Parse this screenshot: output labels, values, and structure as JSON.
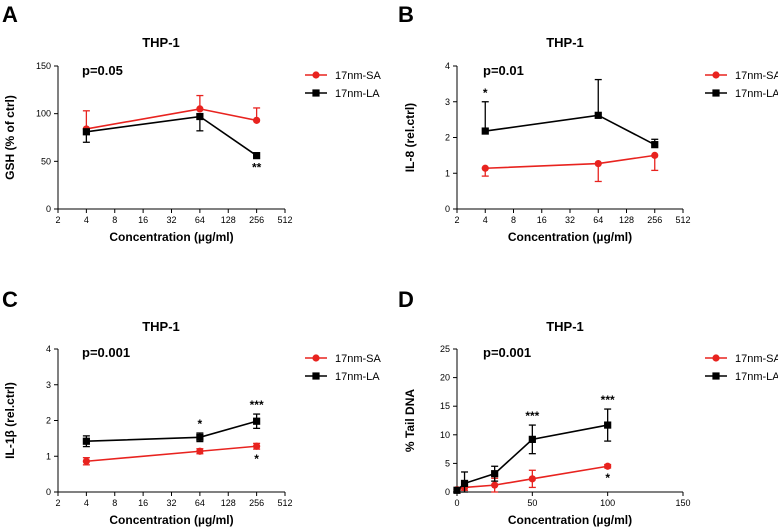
{
  "colors": {
    "sa": "#e8231f",
    "la": "#000000"
  },
  "chart_data": [
    {
      "type": "line",
      "panel": "A",
      "title": "THP-1",
      "annotation": "p=0.05",
      "xlabel": "Concentration (µg/ml)",
      "ylabel": "GSH (% of ctrl)",
      "xscale": "log2",
      "xlim": [
        2,
        512
      ],
      "xticks": [
        2,
        4,
        8,
        16,
        32,
        64,
        128,
        256,
        512
      ],
      "xtick_labels": [
        "2",
        "4",
        "8",
        "16",
        "32",
        "64",
        "128",
        "256",
        "512"
      ],
      "ylim": [
        0,
        150
      ],
      "yticks": [
        0,
        50,
        100,
        150
      ],
      "ytick_labels": [
        "0",
        "50",
        "100",
        "150"
      ],
      "legend_position": "right",
      "series": [
        {
          "name": "17nm-SA",
          "marker": "circle",
          "color": "#e8231f",
          "x": [
            4,
            64,
            256
          ],
          "y": [
            84,
            105,
            93
          ],
          "err": [
            19,
            14,
            13
          ],
          "err_dir": "up",
          "stars": [
            "",
            "",
            ""
          ]
        },
        {
          "name": "17nm-LA",
          "marker": "square",
          "color": "#000000",
          "x": [
            4,
            64,
            256
          ],
          "y": [
            81,
            97,
            56
          ],
          "err": [
            11,
            15,
            0
          ],
          "err_dir": "down",
          "stars": [
            "",
            "",
            "**"
          ]
        }
      ]
    },
    {
      "type": "line",
      "panel": "B",
      "title": "THP-1",
      "annotation": "p=0.01",
      "xlabel": "Concentration (µg/ml)",
      "ylabel": "IL-8 (rel.ctrl)",
      "xscale": "log2",
      "xlim": [
        2,
        512
      ],
      "xticks": [
        2,
        4,
        8,
        16,
        32,
        64,
        128,
        256,
        512
      ],
      "xtick_labels": [
        "2",
        "4",
        "8",
        "16",
        "32",
        "64",
        "128",
        "256",
        "512"
      ],
      "ylim": [
        0,
        4
      ],
      "yticks": [
        0,
        1,
        2,
        3,
        4
      ],
      "ytick_labels": [
        "0",
        "1",
        "2",
        "3",
        "4"
      ],
      "legend_position": "right",
      "series": [
        {
          "name": "17nm-SA",
          "marker": "circle",
          "color": "#e8231f",
          "x": [
            4,
            64,
            256
          ],
          "y": [
            1.14,
            1.27,
            1.5
          ],
          "err": [
            0.22,
            0.5,
            0.42
          ],
          "err_dir": "down",
          "stars": [
            "",
            "",
            ""
          ]
        },
        {
          "name": "17nm-LA",
          "marker": "square",
          "color": "#000000",
          "x": [
            4,
            64,
            256
          ],
          "y": [
            2.18,
            2.62,
            1.8
          ],
          "err": [
            0.82,
            1.0,
            0.15
          ],
          "err_dir": "up",
          "stars": [
            "*",
            "",
            ""
          ]
        }
      ]
    },
    {
      "type": "line",
      "panel": "C",
      "title": "THP-1",
      "annotation": "p=0.001",
      "xlabel": "Concentration (µg/ml)",
      "ylabel": "IL-1β (rel.ctrl)",
      "xscale": "log2",
      "xlim": [
        2,
        512
      ],
      "xticks": [
        2,
        4,
        8,
        16,
        32,
        64,
        128,
        256,
        512
      ],
      "xtick_labels": [
        "2",
        "4",
        "8",
        "16",
        "32",
        "64",
        "128",
        "256",
        "512"
      ],
      "ylim": [
        0,
        4
      ],
      "yticks": [
        0,
        1,
        2,
        3,
        4
      ],
      "ytick_labels": [
        "0",
        "1",
        "2",
        "3",
        "4"
      ],
      "legend_position": "right",
      "series": [
        {
          "name": "17nm-SA",
          "marker": "circle",
          "color": "#e8231f",
          "x": [
            4,
            64,
            256
          ],
          "y": [
            0.86,
            1.14,
            1.28
          ],
          "err": [
            0.1,
            0.07,
            0.08
          ],
          "err_dir": "both",
          "stars": [
            "",
            "",
            "*"
          ]
        },
        {
          "name": "17nm-LA",
          "marker": "square",
          "color": "#000000",
          "x": [
            4,
            64,
            256
          ],
          "y": [
            1.42,
            1.53,
            1.98
          ],
          "err": [
            0.15,
            0.12,
            0.2
          ],
          "err_dir": "both",
          "stars": [
            "",
            "*",
            "***"
          ]
        }
      ]
    },
    {
      "type": "line",
      "panel": "D",
      "title": "THP-1",
      "annotation": "p=0.001",
      "xlabel": "Concentration (µg/ml)",
      "ylabel": "% Tail DNA",
      "xscale": "linear",
      "xlim": [
        0,
        150
      ],
      "xticks": [
        0,
        50,
        100,
        150
      ],
      "xtick_labels": [
        "0",
        "50",
        "100",
        "150"
      ],
      "ylim": [
        0,
        25
      ],
      "yticks": [
        0,
        5,
        10,
        15,
        20,
        25
      ],
      "ytick_labels": [
        "0",
        "5",
        "10",
        "15",
        "20",
        "25"
      ],
      "legend_position": "right",
      "series": [
        {
          "name": "17nm-SA",
          "marker": "circle",
          "color": "#e8231f",
          "x": [
            0,
            5,
            25,
            50,
            100
          ],
          "y": [
            0.4,
            0.8,
            1.2,
            2.3,
            4.5
          ],
          "err": [
            0.3,
            0.5,
            1.2,
            1.5,
            0.3
          ],
          "err_dir": "both",
          "stars": [
            "",
            "",
            "",
            "",
            "*"
          ]
        },
        {
          "name": "17nm-LA",
          "marker": "square",
          "color": "#000000",
          "x": [
            0,
            5,
            25,
            50,
            100
          ],
          "y": [
            0.3,
            1.5,
            3.2,
            9.2,
            11.7
          ],
          "err": [
            0.3,
            2.0,
            1.3,
            2.5,
            2.8
          ],
          "err_dir": "both",
          "stars": [
            "",
            "",
            "",
            "***",
            "***"
          ]
        }
      ]
    }
  ]
}
